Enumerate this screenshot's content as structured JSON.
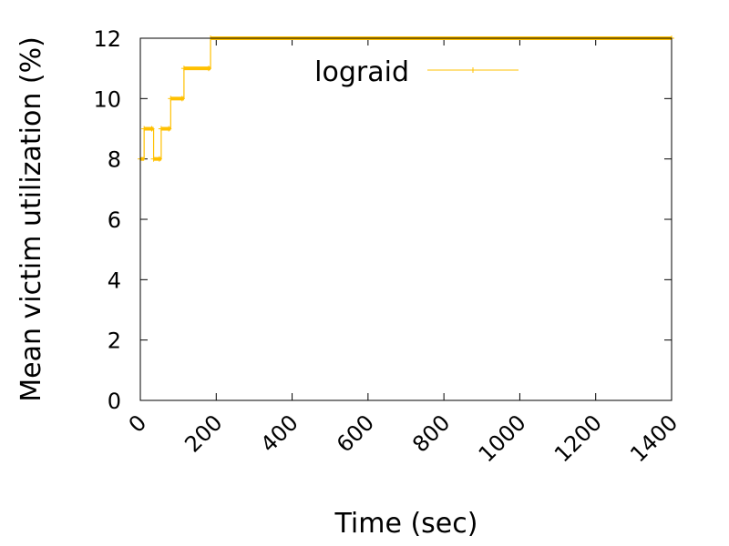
{
  "chart_data": {
    "type": "line",
    "xlabel": "Time (sec)",
    "ylabel": "Mean victim utilization (%)",
    "xlim": [
      0,
      1400
    ],
    "ylim": [
      0,
      12
    ],
    "xticks": [
      0,
      200,
      400,
      600,
      800,
      1000,
      1200,
      1400
    ],
    "yticks": [
      0,
      2,
      4,
      6,
      8,
      10,
      12
    ],
    "grid": false,
    "legend_position": "top-right",
    "series": [
      {
        "name": "lograid",
        "color": "#ffc000",
        "step": true,
        "x": [
          0,
          10,
          30,
          35,
          50,
          55,
          75,
          80,
          110,
          115,
          180,
          185,
          1400
        ],
        "y": [
          8,
          9,
          9,
          8,
          8,
          9,
          9,
          10,
          10,
          11,
          11,
          12,
          12
        ]
      }
    ]
  }
}
